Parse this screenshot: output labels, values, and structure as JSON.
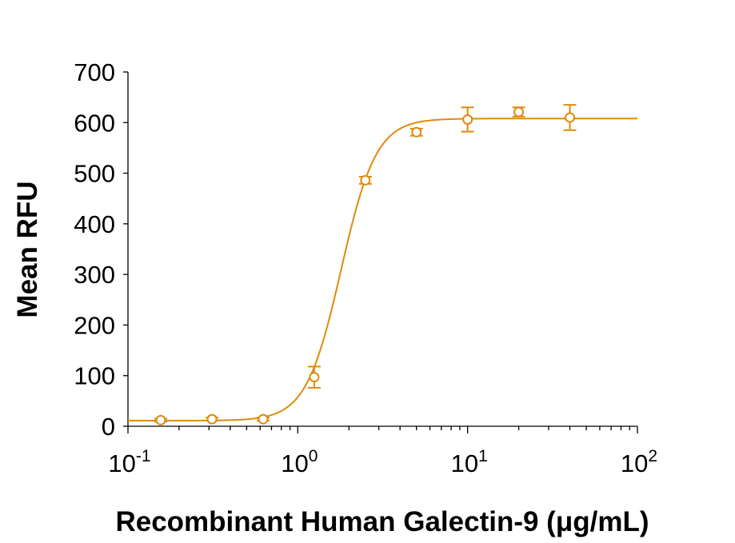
{
  "chart_data": {
    "type": "scatter",
    "title": "",
    "xlabel": "Recombinant Human Galectin-9 (μg/mL)",
    "ylabel": "Mean RFU",
    "x_scale": "log",
    "xlim": [
      0.1,
      100
    ],
    "ylim": [
      0,
      700
    ],
    "y_ticks": [
      0,
      100,
      200,
      300,
      400,
      500,
      600,
      700
    ],
    "x_tick_labels": [
      {
        "base": "10",
        "exp": "-1",
        "value": 0.1
      },
      {
        "base": "10",
        "exp": "0",
        "value": 1
      },
      {
        "base": "10",
        "exp": "1",
        "value": 10
      },
      {
        "base": "10",
        "exp": "2",
        "value": 100
      }
    ],
    "grid": false,
    "color": "#E08A0E",
    "series": [
      {
        "points": [
          {
            "x": 0.156,
            "y": 12,
            "err": 3
          },
          {
            "x": 0.3125,
            "y": 14,
            "err": 3
          },
          {
            "x": 0.625,
            "y": 14,
            "err": 3
          },
          {
            "x": 1.25,
            "y": 97,
            "err": 21
          },
          {
            "x": 2.5,
            "y": 486,
            "err": 7
          },
          {
            "x": 5,
            "y": 581,
            "err": 7
          },
          {
            "x": 10,
            "y": 606,
            "err": 24
          },
          {
            "x": 20,
            "y": 621,
            "err": 9
          },
          {
            "x": 40,
            "y": 610,
            "err": 25
          }
        ]
      }
    ],
    "fit_curve": {
      "model": "4PL",
      "bottom": 11,
      "top": 608,
      "ec50": 1.8,
      "hill": 4.2
    }
  }
}
